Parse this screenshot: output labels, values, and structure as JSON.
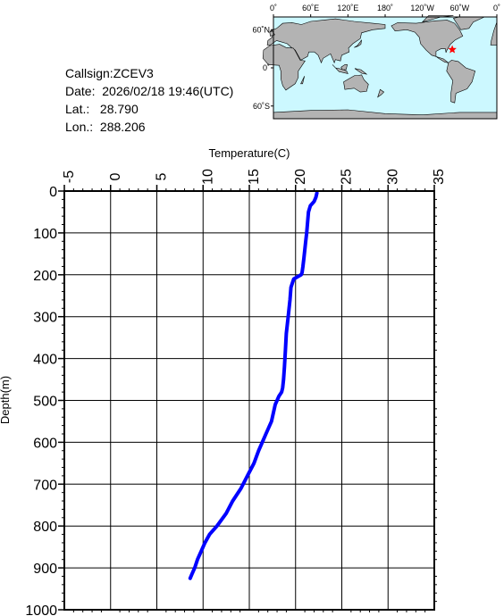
{
  "station": {
    "callsign_label": "Callsign:",
    "callsign": "ZCEV3",
    "date_label": "Date:",
    "date": "2026/02/18 19:46(UTC)",
    "lat_label": "Lat.:",
    "lat": "28.790",
    "lon_label": "Lon.:",
    "lon": "288.206"
  },
  "map": {
    "lon_labels": [
      "0˚",
      "60˚E",
      "120˚E",
      "180˚",
      "120˚W",
      "60˚W",
      "0˚"
    ],
    "lat_labels": [
      "60˚N",
      "0˚",
      "60˚S"
    ],
    "ocean_color": "#ccf8ff",
    "land_color": "#b3b3b3",
    "marker_color": "#ff0000",
    "marker_lat": 28.79,
    "marker_lon": 288.206
  },
  "chart_data": {
    "type": "line",
    "xlabel": "Temperature(C)",
    "ylabel": "Depth(m)",
    "xlim": [
      -5,
      35
    ],
    "ylim": [
      0,
      1000
    ],
    "y_inverted": true,
    "x_axis_position": "top",
    "x_ticks": [
      -5,
      0,
      5,
      10,
      15,
      20,
      25,
      30,
      35
    ],
    "x_tick_labels": [
      "-5",
      "0",
      "5",
      "10",
      "15",
      "20",
      "25",
      "30",
      "35"
    ],
    "y_ticks": [
      0,
      100,
      200,
      300,
      400,
      500,
      600,
      700,
      800,
      900,
      1000
    ],
    "y_tick_labels": [
      "0",
      "100",
      "200",
      "300",
      "400",
      "500",
      "600",
      "700",
      "800",
      "900",
      "1000"
    ],
    "grid": true,
    "line_color": "#0000ff",
    "series": [
      {
        "x": [
          22.3,
          22.2,
          22.0,
          21.6,
          21.4,
          21.3,
          21.2,
          21.1,
          21.0,
          20.9,
          20.8,
          20.7,
          20.6,
          20.2,
          19.8,
          19.5,
          19.4,
          19.2,
          19.0,
          18.9,
          18.8,
          18.7,
          18.6,
          18.5,
          18.2,
          17.8,
          17.4,
          16.8,
          16.4,
          16.0,
          15.5,
          14.8,
          14.1,
          13.2,
          12.5,
          11.5,
          10.7,
          10.2,
          9.8,
          9.4,
          9.1,
          8.8,
          8.6
        ],
        "y": [
          5,
          15,
          25,
          35,
          50,
          75,
          100,
          120,
          140,
          160,
          180,
          195,
          200,
          205,
          210,
          230,
          260,
          300,
          340,
          380,
          420,
          450,
          470,
          480,
          490,
          510,
          550,
          580,
          600,
          620,
          650,
          680,
          710,
          740,
          770,
          800,
          820,
          840,
          860,
          880,
          900,
          915,
          925
        ]
      }
    ]
  }
}
